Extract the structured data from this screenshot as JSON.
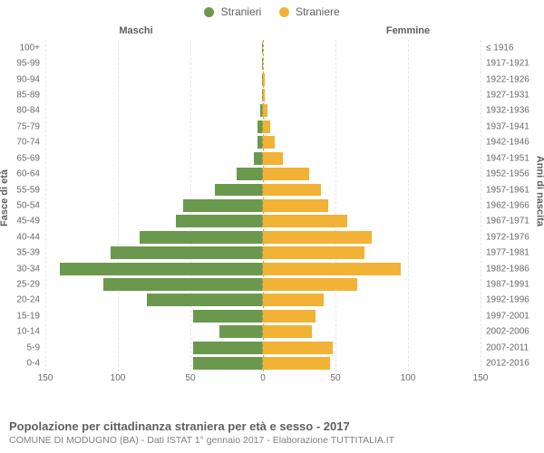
{
  "chart": {
    "type": "population-pyramid",
    "background_color": "#ffffff",
    "grid_color": "#e6e6e6",
    "center_line_color": "#c7a54a",
    "text_color": "#606060",
    "axis_label_color": "#6a6a6a",
    "title_fontsize": 13,
    "subtitle_fontsize": 10.5,
    "label_fontsize": 10,
    "legend": {
      "male": {
        "label": "Stranieri",
        "color": "#6a994e"
      },
      "female": {
        "label": "Straniere",
        "color": "#f2b236"
      }
    },
    "headers": {
      "left": "Maschi",
      "right": "Femmine"
    },
    "y_axis_left_title": "Fasce di età",
    "y_axis_right_title": "Anni di nascita",
    "x_axis": {
      "left_max": 150,
      "right_max": 150,
      "ticks_left": [
        150,
        100,
        50,
        0
      ],
      "ticks_right": [
        0,
        50,
        100,
        150
      ]
    },
    "rows": [
      {
        "age": "100+",
        "birth": "≤ 1916",
        "male": 0,
        "female": 0
      },
      {
        "age": "95-99",
        "birth": "1917-1921",
        "male": 0,
        "female": 0
      },
      {
        "age": "90-94",
        "birth": "1922-1926",
        "male": 0,
        "female": 1
      },
      {
        "age": "85-89",
        "birth": "1927-1931",
        "male": 0,
        "female": 1
      },
      {
        "age": "80-84",
        "birth": "1932-1936",
        "male": 2,
        "female": 3
      },
      {
        "age": "75-79",
        "birth": "1937-1941",
        "male": 4,
        "female": 5
      },
      {
        "age": "70-74",
        "birth": "1942-1946",
        "male": 4,
        "female": 8
      },
      {
        "age": "65-69",
        "birth": "1947-1951",
        "male": 6,
        "female": 14
      },
      {
        "age": "60-64",
        "birth": "1952-1956",
        "male": 18,
        "female": 32
      },
      {
        "age": "55-59",
        "birth": "1957-1961",
        "male": 33,
        "female": 40
      },
      {
        "age": "50-54",
        "birth": "1962-1966",
        "male": 55,
        "female": 45
      },
      {
        "age": "45-49",
        "birth": "1967-1971",
        "male": 60,
        "female": 58
      },
      {
        "age": "40-44",
        "birth": "1972-1976",
        "male": 85,
        "female": 75
      },
      {
        "age": "35-39",
        "birth": "1977-1981",
        "male": 105,
        "female": 70
      },
      {
        "age": "30-34",
        "birth": "1982-1986",
        "male": 140,
        "female": 95
      },
      {
        "age": "25-29",
        "birth": "1987-1991",
        "male": 110,
        "female": 65
      },
      {
        "age": "20-24",
        "birth": "1992-1996",
        "male": 80,
        "female": 42
      },
      {
        "age": "15-19",
        "birth": "1997-2001",
        "male": 48,
        "female": 36
      },
      {
        "age": "10-14",
        "birth": "2002-2006",
        "male": 30,
        "female": 34
      },
      {
        "age": "5-9",
        "birth": "2007-2011",
        "male": 48,
        "female": 48
      },
      {
        "age": "0-4",
        "birth": "2012-2016",
        "male": 48,
        "female": 46
      }
    ]
  },
  "footer": {
    "title": "Popolazione per cittadinanza straniera per età e sesso - 2017",
    "subtitle": "COMUNE DI MODUGNO (BA) - Dati ISTAT 1° gennaio 2017 - Elaborazione TUTTITALIA.IT"
  }
}
